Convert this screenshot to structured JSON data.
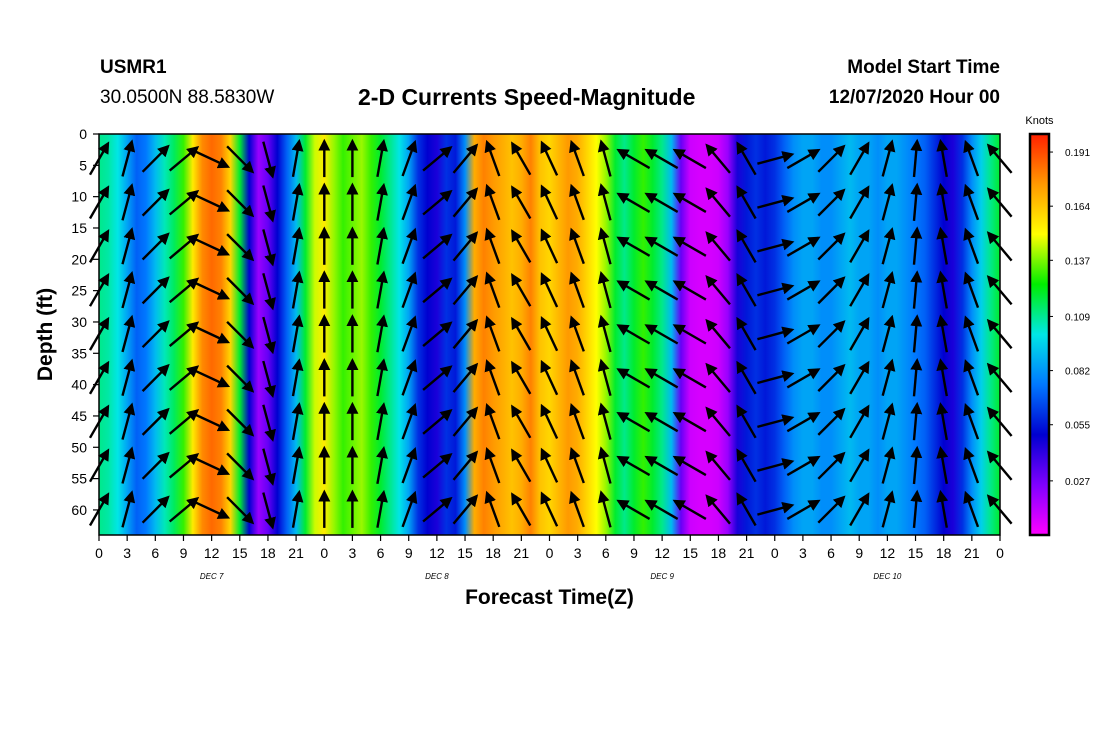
{
  "header": {
    "station": "USMR1",
    "coords": "30.0500N 88.5830W",
    "title": "2-D Currents Speed-Magnitude",
    "start_label": "Model Start Time",
    "start_value": "12/07/2020 Hour 00"
  },
  "colors": {
    "ramp": [
      "#ff00ff",
      "#8000ff",
      "#0000d0",
      "#0078ff",
      "#00e6e6",
      "#00ee00",
      "#ffff00",
      "#ff9900",
      "#ff2000"
    ],
    "arrow": "#000000",
    "frame": "#000000"
  },
  "chart_data": {
    "type": "heatmap",
    "title": "2-D Currents Speed-Magnitude",
    "xlabel": "Forecast Time(Z)",
    "ylabel": "Depth (ft)",
    "x_tick_labels": [
      "0",
      "3",
      "6",
      "9",
      "12",
      "15",
      "18",
      "21",
      "0",
      "3",
      "6",
      "9",
      "12",
      "15",
      "18",
      "21",
      "0",
      "3",
      "6",
      "9",
      "12",
      "15",
      "18",
      "21",
      "0",
      "3",
      "6",
      "9",
      "12",
      "15",
      "18",
      "21",
      "0"
    ],
    "day_labels": [
      {
        "label": "DEC 7",
        "hour": 12
      },
      {
        "label": "DEC 8",
        "hour": 36
      },
      {
        "label": "DEC 9",
        "hour": 60
      },
      {
        "label": "DEC 10",
        "hour": 84
      }
    ],
    "xlim_hours": [
      0,
      96
    ],
    "ylim_ft": [
      0,
      64
    ],
    "y_ticks": [
      0,
      5,
      10,
      15,
      20,
      25,
      30,
      35,
      40,
      45,
      50,
      55,
      60
    ],
    "y_inverted": true,
    "colorbar": {
      "unit": "Knots",
      "min": 0.0,
      "max": 0.2,
      "tick_labels": [
        "0.191",
        "0.164",
        "0.137",
        "0.109",
        "0.082",
        "0.055",
        "0.027"
      ],
      "tick_values": [
        0.191,
        0.164,
        0.137,
        0.109,
        0.082,
        0.055,
        0.027
      ]
    },
    "speed_profile_knots": {
      "hours": [
        0,
        1,
        2,
        3,
        4,
        5,
        6,
        7,
        8,
        9,
        10,
        11,
        12,
        13,
        14,
        15,
        16,
        17,
        18,
        19,
        20,
        21,
        22,
        23,
        24,
        25,
        26,
        27,
        28,
        29,
        30,
        31,
        32,
        33,
        34,
        35,
        36,
        37,
        38,
        39,
        40,
        41,
        42,
        43,
        44,
        45,
        46,
        47,
        48,
        49,
        50,
        51,
        52,
        53,
        54,
        55,
        56,
        57,
        58,
        59,
        60,
        61,
        62,
        63,
        64,
        65,
        66,
        67,
        68,
        69,
        70,
        71,
        72,
        73,
        74,
        75,
        76,
        77,
        78,
        79,
        80,
        81,
        82,
        83,
        84,
        85,
        86,
        87,
        88,
        89,
        90,
        91,
        92,
        93,
        94,
        95,
        96
      ],
      "values": [
        0.11,
        0.107,
        0.1,
        0.085,
        0.07,
        0.075,
        0.09,
        0.105,
        0.115,
        0.13,
        0.155,
        0.178,
        0.185,
        0.18,
        0.16,
        0.12,
        0.05,
        0.02,
        0.03,
        0.05,
        0.07,
        0.09,
        0.12,
        0.145,
        0.155,
        0.14,
        0.13,
        0.135,
        0.14,
        0.13,
        0.12,
        0.11,
        0.1,
        0.085,
        0.06,
        0.05,
        0.045,
        0.06,
        0.055,
        0.08,
        0.17,
        0.18,
        0.175,
        0.17,
        0.165,
        0.17,
        0.18,
        0.165,
        0.16,
        0.168,
        0.175,
        0.17,
        0.16,
        0.15,
        0.14,
        0.12,
        0.11,
        0.12,
        0.13,
        0.12,
        0.11,
        0.09,
        0.03,
        0.01,
        0.008,
        0.008,
        0.01,
        0.02,
        0.045,
        0.055,
        0.06,
        0.055,
        0.06,
        0.07,
        0.08,
        0.085,
        0.085,
        0.08,
        0.08,
        0.085,
        0.09,
        0.085,
        0.085,
        0.08,
        0.085,
        0.085,
        0.08,
        0.075,
        0.07,
        0.06,
        0.05,
        0.045,
        0.06,
        0.08,
        0.095,
        0.11,
        0.12
      ]
    },
    "vector_columns": {
      "hours": [
        0,
        3,
        6,
        9,
        12,
        15,
        18,
        21,
        24,
        27,
        30,
        33,
        36,
        39,
        42,
        45,
        48,
        51,
        54,
        57,
        60,
        63,
        66,
        69,
        72,
        75,
        78,
        81,
        84,
        87,
        90,
        93,
        96
      ],
      "directions_deg_from_north": [
        30,
        15,
        45,
        50,
        115,
        135,
        165,
        10,
        0,
        0,
        10,
        20,
        50,
        40,
        340,
        330,
        335,
        340,
        345,
        300,
        300,
        300,
        320,
        330,
        75,
        60,
        45,
        30,
        15,
        5,
        350,
        340,
        320
      ]
    },
    "vector_depths_ft": [
      4,
      11,
      18,
      25,
      32,
      39,
      46,
      53,
      60
    ]
  }
}
